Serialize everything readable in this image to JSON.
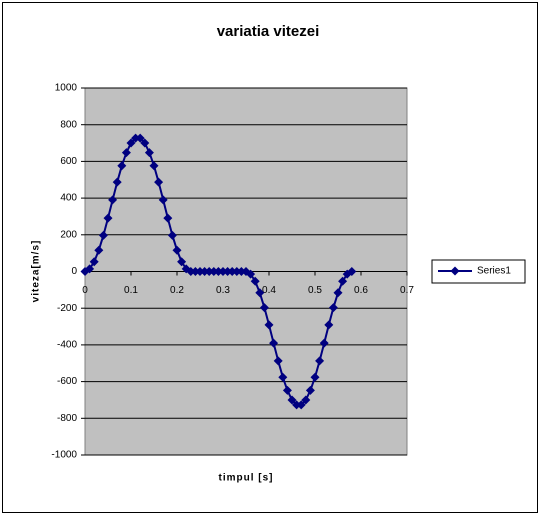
{
  "chart_data": {
    "type": "line",
    "title": "variatia vitezei",
    "x_label": "timpul [s]",
    "y_label": "viteza[m/s]",
    "x": [
      0,
      0.01,
      0.02,
      0.03,
      0.04,
      0.05,
      0.06,
      0.07,
      0.08,
      0.09,
      0.1,
      0.11,
      0.12,
      0.13,
      0.14,
      0.15,
      0.16,
      0.17,
      0.18,
      0.19,
      0.2,
      0.21,
      0.22,
      0.23,
      0.24,
      0.25,
      0.26,
      0.27,
      0.28,
      0.29,
      0.3,
      0.31,
      0.32,
      0.33,
      0.34,
      0.35,
      0.36,
      0.37,
      0.38,
      0.39,
      0.4,
      0.41,
      0.42,
      0.43,
      0.44,
      0.45,
      0.46,
      0.47,
      0.48,
      0.49,
      0.5,
      0.51,
      0.52,
      0.53,
      0.54,
      0.55,
      0.56,
      0.57,
      0.58
    ],
    "series": [
      {
        "name": "Series1",
        "color": "#000080",
        "values": [
          0,
          14,
          53,
          116,
          197,
          291,
          390,
          487,
          576,
          648,
          700,
          727,
          727,
          700,
          648,
          576,
          487,
          390,
          291,
          197,
          116,
          53,
          14,
          0,
          0,
          0,
          0,
          0,
          0,
          0,
          0,
          0,
          0,
          0,
          0,
          0,
          -14,
          -53,
          -116,
          -197,
          -291,
          -390,
          -487,
          -576,
          -648,
          -700,
          -727,
          -727,
          -700,
          -648,
          -576,
          -487,
          -390,
          -291,
          -197,
          -116,
          -53,
          -14,
          0
        ]
      }
    ],
    "xlim": [
      0,
      0.7
    ],
    "xticks": [
      0,
      0.1,
      0.2,
      0.3,
      0.4,
      0.5,
      0.6,
      0.7
    ],
    "ylim": [
      -1000,
      1000
    ],
    "yticks": [
      -1000,
      -800,
      -600,
      -400,
      -200,
      0,
      200,
      400,
      600,
      800,
      1000
    ],
    "grid": true,
    "legend": "right"
  }
}
